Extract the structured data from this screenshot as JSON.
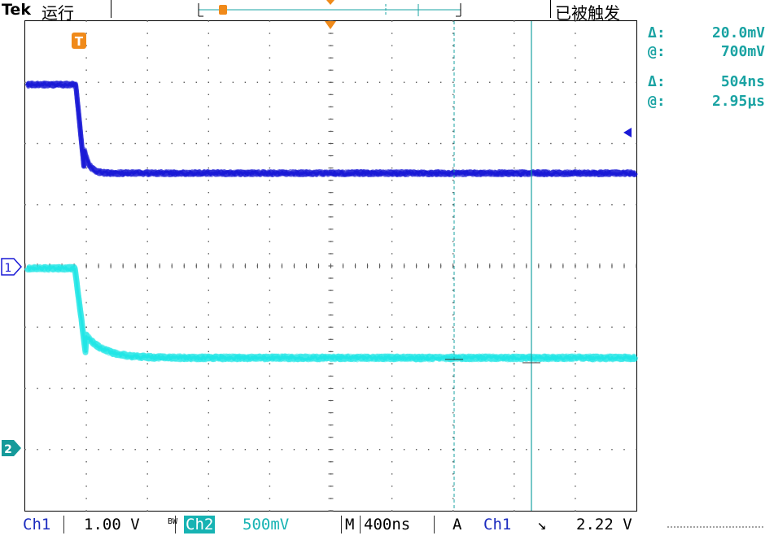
{
  "header": {
    "brand": "Tek",
    "run_state": "运行",
    "trigger_state": "已被触发",
    "trigger_marker": "T"
  },
  "readouts": {
    "voltage": {
      "delta_symbol": "Δ:",
      "delta_value": "20.0mV",
      "at_symbol": "@:",
      "at_value": "700mV"
    },
    "time": {
      "delta_symbol": "Δ:",
      "delta_value": "504ns",
      "at_symbol": "@:",
      "at_value": "2.95µs"
    }
  },
  "channel_markers": {
    "ch1": "1",
    "ch2": "2"
  },
  "footer": {
    "ch1_label": "Ch1",
    "ch1_scale": "1.00 V",
    "bw_label": "BW",
    "ch2_label": "Ch2",
    "ch2_scale": "500mV",
    "timebase_label": "M",
    "timebase_value": "400ns",
    "acq_label": "A",
    "trigger_source": "Ch1",
    "trigger_slope": "↘",
    "trigger_level": "2.22 V"
  },
  "colors": {
    "ch1_trace": "#1a1ad6",
    "ch2_trace": "#22e6e6",
    "cursor": "#1aa3a3",
    "trigger_marker": "#f08a1a"
  }
}
